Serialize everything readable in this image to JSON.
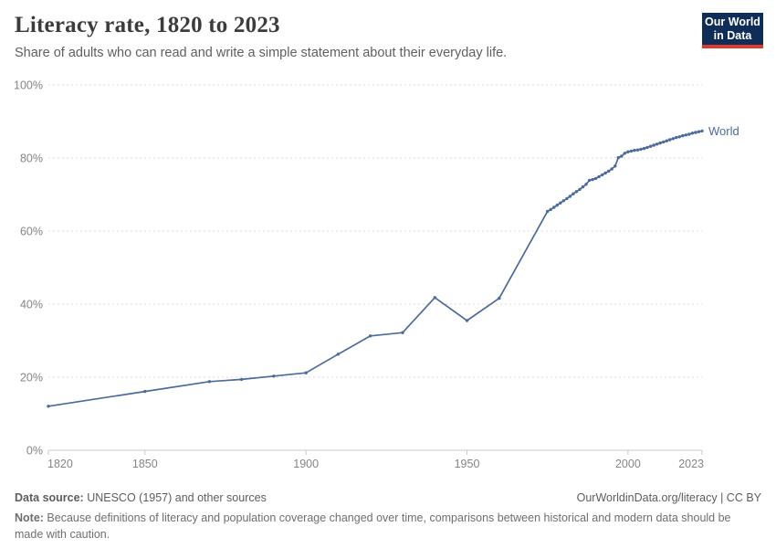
{
  "header": {
    "title": "Literacy rate, 1820 to 2023",
    "subtitle": "Share of adults who can read and write a simple statement about their everyday life.",
    "logo": {
      "line1": "Our World",
      "line2": "in Data",
      "bg": "#0f2d57",
      "accent": "#dc3b2d"
    }
  },
  "chart_data": {
    "type": "line",
    "title": "Literacy rate, 1820 to 2023",
    "xlabel": "",
    "ylabel": "",
    "xlim": [
      1820,
      2023
    ],
    "ylim": [
      0,
      100
    ],
    "grid": "horizontal-dashed",
    "legend_position": "end-of-line-label",
    "x_ticks": [
      1820,
      1850,
      1900,
      1950,
      2000,
      2023
    ],
    "y_tick_values": [
      0,
      20,
      40,
      60,
      80,
      100
    ],
    "y_tick_labels": [
      "0%",
      "20%",
      "40%",
      "60%",
      "80%",
      "100%"
    ],
    "series": [
      {
        "name": "World",
        "color": "#4c6a9c",
        "points": [
          [
            1820,
            12.05
          ],
          [
            1850,
            16.1
          ],
          [
            1870,
            18.8
          ],
          [
            1880,
            19.4
          ],
          [
            1890,
            20.3
          ],
          [
            1900,
            21.2
          ],
          [
            1910,
            26.3
          ],
          [
            1920,
            31.3
          ],
          [
            1930,
            32.2
          ],
          [
            1940,
            41.8
          ],
          [
            1950,
            35.5
          ],
          [
            1960,
            41.6
          ],
          [
            1975,
            65.4
          ],
          [
            1976,
            65.9
          ],
          [
            1977,
            66.5
          ],
          [
            1978,
            67.1
          ],
          [
            1979,
            67.7
          ],
          [
            1980,
            68.3
          ],
          [
            1981,
            68.9
          ],
          [
            1982,
            69.5
          ],
          [
            1983,
            70.2
          ],
          [
            1984,
            70.8
          ],
          [
            1985,
            71.4
          ],
          [
            1986,
            72.1
          ],
          [
            1987,
            72.8
          ],
          [
            1988,
            73.9
          ],
          [
            1989,
            74.1
          ],
          [
            1990,
            74.4
          ],
          [
            1991,
            74.9
          ],
          [
            1992,
            75.4
          ],
          [
            1993,
            75.9
          ],
          [
            1994,
            76.4
          ],
          [
            1995,
            77.0
          ],
          [
            1996,
            77.8
          ],
          [
            1997,
            80.1
          ],
          [
            1998,
            80.5
          ],
          [
            1999,
            81.3
          ],
          [
            2000,
            81.7
          ],
          [
            2001,
            81.9
          ],
          [
            2002,
            82.1
          ],
          [
            2003,
            82.2
          ],
          [
            2004,
            82.4
          ],
          [
            2005,
            82.6
          ],
          [
            2006,
            82.9
          ],
          [
            2007,
            83.2
          ],
          [
            2008,
            83.5
          ],
          [
            2009,
            83.8
          ],
          [
            2010,
            84.1
          ],
          [
            2011,
            84.4
          ],
          [
            2012,
            84.7
          ],
          [
            2013,
            85.0
          ],
          [
            2014,
            85.3
          ],
          [
            2015,
            85.6
          ],
          [
            2016,
            85.8
          ],
          [
            2017,
            86.1
          ],
          [
            2018,
            86.3
          ],
          [
            2019,
            86.5
          ],
          [
            2020,
            86.8
          ],
          [
            2021,
            87.0
          ],
          [
            2022,
            87.2
          ],
          [
            2023,
            87.4
          ]
        ]
      }
    ]
  },
  "footer": {
    "data_source_label": "Data source:",
    "data_source_text": " UNESCO (1957) and other sources",
    "attribution": "OurWorldinData.org/literacy | CC BY",
    "note_label": "Note:",
    "note_text": " Because definitions of literacy and population coverage changed over time, comparisons between historical and modern data should be made with caution."
  }
}
